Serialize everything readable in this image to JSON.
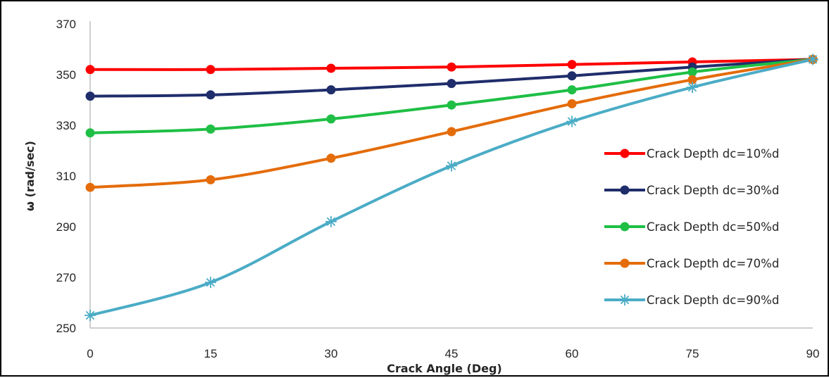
{
  "chart_data": {
    "type": "line",
    "title": "",
    "xlabel": "Crack Angle (Deg)",
    "ylabel": "ω (rad/sec)",
    "x": [
      0,
      15,
      30,
      45,
      60,
      75,
      90
    ],
    "x_ticks": [
      "0",
      "15",
      "30",
      "45",
      "60",
      "75",
      "90"
    ],
    "y_ticks": [
      "250",
      "270",
      "290",
      "310",
      "330",
      "350",
      "370"
    ],
    "xlim": [
      0,
      90
    ],
    "ylim": [
      250,
      370
    ],
    "grid": false,
    "legend_position": "right",
    "series": [
      {
        "name": "Crack Depth dc=10%d",
        "color": "#ff0000",
        "marker": "circle",
        "values": [
          352,
          352,
          352.5,
          353,
          354,
          355,
          356
        ]
      },
      {
        "name": "Crack Depth dc=30%d",
        "color": "#1f2d6b",
        "marker": "circle",
        "values": [
          341.5,
          342,
          344,
          346.5,
          349.5,
          353,
          356
        ]
      },
      {
        "name": "Crack Depth dc=50%d",
        "color": "#1fbf45",
        "marker": "circle",
        "values": [
          327,
          328.5,
          332.5,
          338,
          344,
          351,
          356
        ]
      },
      {
        "name": "Crack Depth dc=70%d",
        "color": "#e46c0a",
        "marker": "circle",
        "values": [
          305.5,
          308.5,
          317,
          327.5,
          338.5,
          348,
          356
        ]
      },
      {
        "name": "Crack Depth dc=90%d",
        "color": "#4bacc6",
        "marker": "asterisk",
        "values": [
          255,
          268,
          292,
          314,
          331.5,
          345,
          356
        ]
      }
    ]
  }
}
